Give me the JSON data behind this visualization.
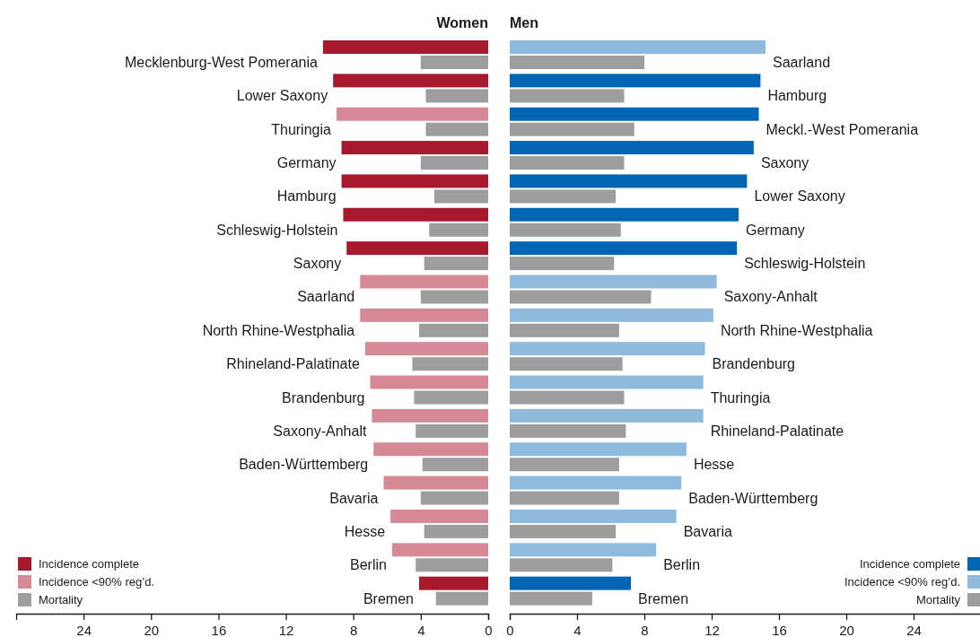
{
  "chart_data": [
    {
      "type": "bar",
      "orientation": "horizontal",
      "title": "Women",
      "categories": [
        "Mecklenburg-West Pomerania",
        "Lower Saxony",
        "Thuringia",
        "Germany",
        "Hamburg",
        "Schleswig-Holstein",
        "Saxony",
        "Saarland",
        "North Rhine-Westphalia",
        "Rhineland-Palatinate",
        "Brandenburg",
        "Saxony-Anhalt",
        "Baden-Württemberg",
        "Bavaria",
        "Hesse",
        "Berlin",
        "Bremen"
      ],
      "series": [
        {
          "name": "Incidence complete",
          "color": "#a8192e",
          "values": [
            9.8,
            9.2,
            null,
            8.7,
            8.7,
            8.6,
            8.4,
            null,
            null,
            null,
            null,
            null,
            null,
            null,
            null,
            null,
            4.1
          ]
        },
        {
          "name": "Incidence <90% reg’d.",
          "color": "#d68a95",
          "values": [
            null,
            null,
            9.0,
            null,
            null,
            null,
            null,
            7.6,
            7.6,
            7.3,
            7.0,
            6.9,
            6.8,
            6.2,
            5.8,
            5.7,
            null
          ]
        },
        {
          "name": "Mortality",
          "color": "#9d9d9d",
          "values": [
            4.0,
            3.7,
            3.7,
            4.0,
            3.2,
            3.5,
            3.8,
            4.0,
            4.1,
            4.5,
            4.4,
            4.3,
            3.9,
            4.0,
            3.8,
            4.3,
            3.1
          ]
        }
      ],
      "xlim": [
        28,
        0
      ],
      "xticks": [
        24,
        20,
        16,
        12,
        8,
        4,
        0
      ],
      "legend": "bottom left",
      "grid": false
    },
    {
      "type": "bar",
      "orientation": "horizontal",
      "title": "Men",
      "categories": [
        "Saarland",
        "Hamburg",
        "Meckl.-West Pomerania",
        "Saxony",
        "Lower Saxony",
        "Germany",
        "Schleswig-Holstein",
        "Saxony-Anhalt",
        "North Rhine-Westphalia",
        "Brandenburg",
        "Thuringia",
        "Rhineland-Palatinate",
        "Hesse",
        "Baden-Württemberg",
        "Bavaria",
        "Berlin",
        "Bremen"
      ],
      "series": [
        {
          "name": "Incidence complete",
          "color": "#0066b3",
          "values": [
            null,
            14.9,
            14.8,
            14.5,
            14.1,
            13.6,
            13.5,
            null,
            null,
            null,
            null,
            null,
            null,
            null,
            null,
            null,
            7.2
          ]
        },
        {
          "name": "Incidence <90% reg’d.",
          "color": "#8dbadd",
          "values": [
            15.2,
            null,
            null,
            null,
            null,
            null,
            null,
            12.3,
            12.1,
            11.6,
            11.5,
            11.5,
            10.5,
            10.2,
            9.9,
            8.7,
            null
          ]
        },
        {
          "name": "Mortality",
          "color": "#9d9d9d",
          "values": [
            8.0,
            6.8,
            7.4,
            6.8,
            6.3,
            6.6,
            6.2,
            8.4,
            6.5,
            6.7,
            6.8,
            6.9,
            6.5,
            6.5,
            6.3,
            6.1,
            4.9
          ]
        }
      ],
      "xlim": [
        0,
        28
      ],
      "xticks": [
        0,
        4,
        8,
        12,
        16,
        20,
        24
      ],
      "legend": "bottom right",
      "grid": false
    }
  ]
}
